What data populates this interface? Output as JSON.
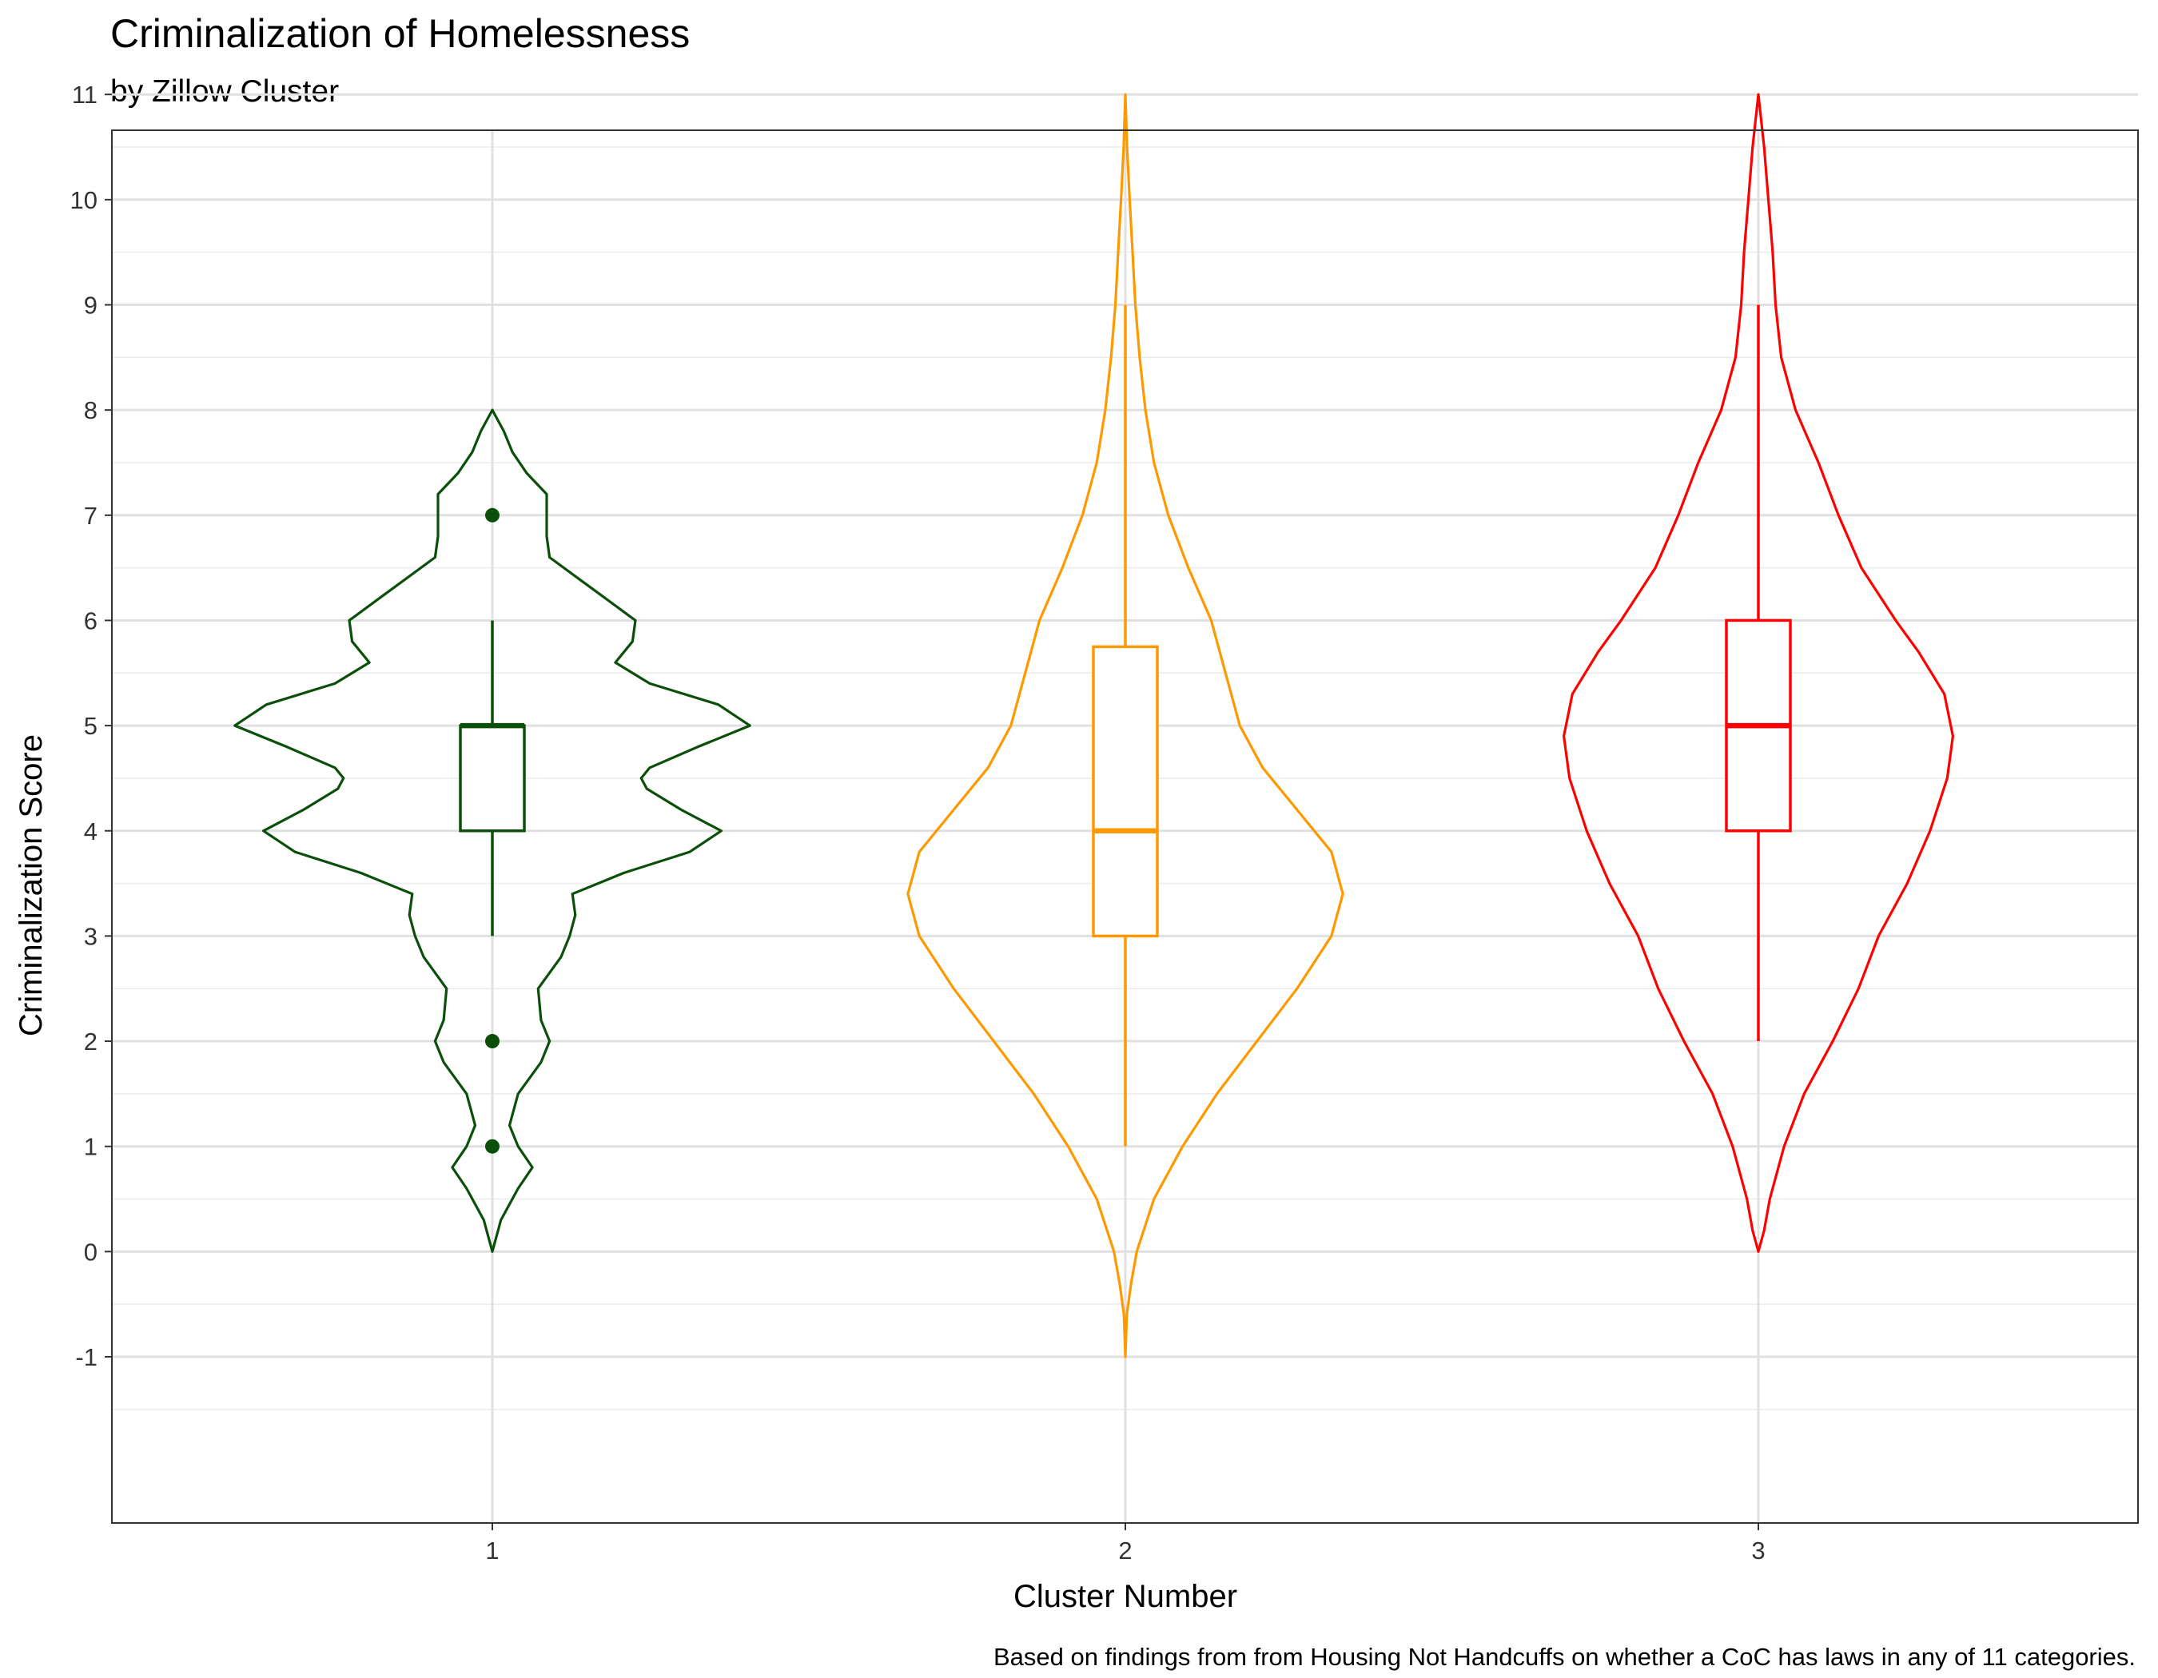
{
  "chart_data": {
    "type": "violin",
    "title": "Criminalization of Homelessness",
    "subtitle": "by Zillow Cluster",
    "xlabel": "Cluster Number",
    "ylabel": "Criminalization Score",
    "caption": "Based on findings from from Housing Not Handcuffs on whether a CoC has laws in any of 11 categories.",
    "ylim": [
      -1.6,
      11.6
    ],
    "y_ticks": [
      "-1",
      "0",
      "1",
      "2",
      "3",
      "4",
      "5",
      "6",
      "7",
      "8",
      "9",
      "10",
      "11"
    ],
    "categories": [
      "1",
      "2",
      "3"
    ],
    "grid": true,
    "series": [
      {
        "category": "1",
        "color": "#0b4f0b",
        "box": {
          "q1": 4,
          "median": 5,
          "q3": 5,
          "whisker_low": 3,
          "whisker_high": 6
        },
        "outliers": [
          7,
          2,
          1
        ],
        "violin_range": [
          0,
          8
        ],
        "violin_profile": [
          [
            0,
            0.0
          ],
          [
            0.3,
            0.03
          ],
          [
            0.6,
            0.09
          ],
          [
            0.8,
            0.14
          ],
          [
            1.0,
            0.09
          ],
          [
            1.2,
            0.06
          ],
          [
            1.5,
            0.09
          ],
          [
            1.8,
            0.17
          ],
          [
            2.0,
            0.2
          ],
          [
            2.2,
            0.17
          ],
          [
            2.5,
            0.16
          ],
          [
            2.8,
            0.24
          ],
          [
            3.0,
            0.27
          ],
          [
            3.2,
            0.29
          ],
          [
            3.4,
            0.28
          ],
          [
            3.6,
            0.46
          ],
          [
            3.8,
            0.69
          ],
          [
            4.0,
            0.8
          ],
          [
            4.2,
            0.66
          ],
          [
            4.4,
            0.54
          ],
          [
            4.5,
            0.52
          ],
          [
            4.6,
            0.55
          ],
          [
            4.8,
            0.72
          ],
          [
            5.0,
            0.9
          ],
          [
            5.2,
            0.79
          ],
          [
            5.4,
            0.55
          ],
          [
            5.6,
            0.43
          ],
          [
            5.8,
            0.49
          ],
          [
            6.0,
            0.5
          ],
          [
            6.2,
            0.4
          ],
          [
            6.4,
            0.3
          ],
          [
            6.6,
            0.2
          ],
          [
            6.8,
            0.19
          ],
          [
            7.0,
            0.19
          ],
          [
            7.2,
            0.19
          ],
          [
            7.4,
            0.12
          ],
          [
            7.6,
            0.07
          ],
          [
            7.8,
            0.04
          ],
          [
            8.0,
            0.0
          ]
        ]
      },
      {
        "category": "2",
        "color": "#ff9900",
        "box": {
          "q1": 3,
          "median": 4,
          "q3": 5.75,
          "whisker_low": 1,
          "whisker_high": 9
        },
        "outliers": [],
        "violin_range": [
          -1,
          11
        ],
        "violin_profile": [
          [
            -1,
            0.0
          ],
          [
            -0.6,
            0.005
          ],
          [
            -0.3,
            0.02
          ],
          [
            0,
            0.04
          ],
          [
            0.5,
            0.1
          ],
          [
            1.0,
            0.2
          ],
          [
            1.5,
            0.32
          ],
          [
            2.0,
            0.46
          ],
          [
            2.5,
            0.6
          ],
          [
            3.0,
            0.72
          ],
          [
            3.4,
            0.76
          ],
          [
            3.8,
            0.72
          ],
          [
            4.2,
            0.6
          ],
          [
            4.6,
            0.48
          ],
          [
            5.0,
            0.4
          ],
          [
            5.5,
            0.35
          ],
          [
            6.0,
            0.3
          ],
          [
            6.5,
            0.22
          ],
          [
            7.0,
            0.15
          ],
          [
            7.5,
            0.1
          ],
          [
            8.0,
            0.07
          ],
          [
            8.5,
            0.05
          ],
          [
            9.0,
            0.035
          ],
          [
            9.5,
            0.025
          ],
          [
            10.0,
            0.015
          ],
          [
            10.5,
            0.006
          ],
          [
            11.0,
            0.0
          ]
        ]
      },
      {
        "category": "3",
        "color": "#ff0000",
        "box": {
          "q1": 4,
          "median": 5,
          "q3": 6,
          "whisker_low": 2,
          "whisker_high": 9
        },
        "outliers": [],
        "violin_range": [
          0,
          11
        ],
        "violin_profile": [
          [
            0,
            0.0
          ],
          [
            0.2,
            0.02
          ],
          [
            0.5,
            0.04
          ],
          [
            1.0,
            0.09
          ],
          [
            1.5,
            0.16
          ],
          [
            2.0,
            0.26
          ],
          [
            2.5,
            0.35
          ],
          [
            3.0,
            0.42
          ],
          [
            3.5,
            0.52
          ],
          [
            4.0,
            0.6
          ],
          [
            4.5,
            0.66
          ],
          [
            4.9,
            0.68
          ],
          [
            5.3,
            0.65
          ],
          [
            5.7,
            0.56
          ],
          [
            6.0,
            0.48
          ],
          [
            6.5,
            0.36
          ],
          [
            7.0,
            0.28
          ],
          [
            7.5,
            0.21
          ],
          [
            8.0,
            0.13
          ],
          [
            8.5,
            0.08
          ],
          [
            9.0,
            0.06
          ],
          [
            9.5,
            0.05
          ],
          [
            10.0,
            0.035
          ],
          [
            10.5,
            0.02
          ],
          [
            11.0,
            0.0
          ]
        ]
      }
    ]
  }
}
